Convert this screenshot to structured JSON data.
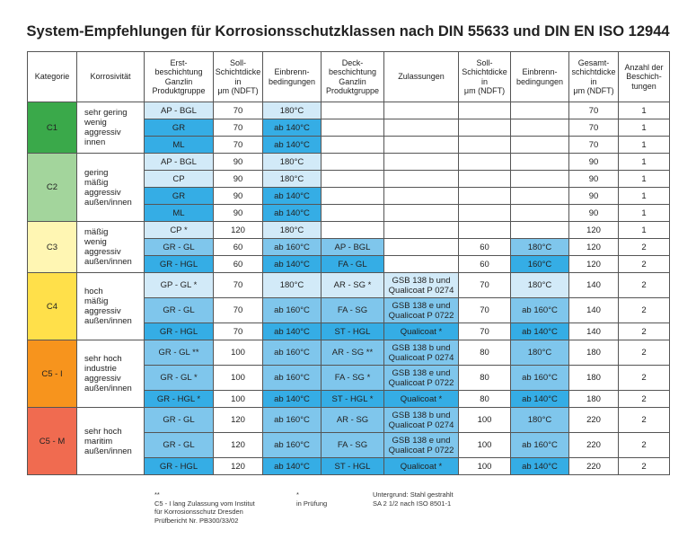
{
  "title": "System-Empfehlungen für Korrosionsschutzklassen nach DIN 55633 und DIN EN ISO 12944",
  "headers": [
    [
      "Kategorie"
    ],
    [
      "Korrosivität"
    ],
    [
      "Erst-",
      "beschichtung",
      "Ganzlin",
      "Produktgruppe"
    ],
    [
      "Soll-",
      "Schichtdicke",
      "in",
      "μm (NDFT)"
    ],
    [
      "Einbrenn-",
      "bedingungen"
    ],
    [
      "Deck-",
      "beschichtung",
      "Ganzlin",
      "Produktgruppe"
    ],
    [
      "Zulassungen"
    ],
    [
      "Soll-",
      "Schichtdicke",
      "in",
      "μm (NDFT)"
    ],
    [
      "Einbrenn-",
      "bedingungen"
    ],
    [
      "Gesamt-",
      "schichtdicke",
      "in",
      "μm (NDFT)"
    ],
    [
      "Anzahl der",
      "Beschich-",
      "tungen"
    ]
  ],
  "groups": [
    {
      "kategorie": "C1",
      "color": "#3aa94a",
      "korrosivitaet": [
        "sehr gering",
        "wenig aggressiv",
        "innen"
      ],
      "rows": [
        [
          "AP - BGL",
          70,
          "180°C",
          null,
          null,
          null,
          null,
          70,
          1
        ],
        [
          "GR",
          70,
          "ab 140°C",
          null,
          null,
          null,
          null,
          70,
          1
        ],
        [
          "ML",
          70,
          "ab 140°C",
          null,
          null,
          null,
          null,
          70,
          1
        ]
      ]
    },
    {
      "kategorie": "C2",
      "color": "#a3d59c",
      "korrosivitaet": [
        "gering",
        "mäßig aggressiv",
        "außen/innen"
      ],
      "rows": [
        [
          "AP - BGL",
          90,
          "180°C",
          null,
          null,
          null,
          null,
          90,
          1
        ],
        [
          "CP",
          90,
          "180°C",
          null,
          null,
          null,
          null,
          90,
          1
        ],
        [
          "GR",
          90,
          "ab 140°C",
          null,
          null,
          null,
          null,
          90,
          1
        ],
        [
          "ML",
          90,
          "ab 140°C",
          null,
          null,
          null,
          null,
          90,
          1
        ]
      ]
    },
    {
      "kategorie": "C3",
      "color": "#fff6b3",
      "korrosivitaet": [
        "mäßig",
        "wenig aggressiv",
        "außen/innen"
      ],
      "rows": [
        [
          "CP *",
          120,
          "180°C",
          null,
          null,
          null,
          null,
          120,
          1
        ],
        [
          "GR - GL",
          60,
          "ab 160°C",
          "AP - BGL",
          null,
          60,
          "180°C",
          120,
          2
        ],
        [
          "GR - HGL",
          60,
          "ab 140°C",
          "FA - GL",
          null,
          60,
          "160°C",
          120,
          2
        ]
      ]
    },
    {
      "kategorie": "C4",
      "color": "#ffe04a",
      "korrosivitaet": [
        "hoch",
        "mäßig aggressiv",
        "außen/innen"
      ],
      "rows": [
        [
          "GP - GL *",
          70,
          "180°C",
          "AR - SG *",
          [
            "GSB 138 b und",
            "Qualicoat P 0274"
          ],
          70,
          "180°C",
          140,
          2
        ],
        [
          "GR - GL",
          70,
          "ab 160°C",
          "FA - SG",
          [
            "GSB 138 e und",
            "Qualicoat P 0722"
          ],
          70,
          "ab 160°C",
          140,
          2
        ],
        [
          "GR - HGL",
          70,
          "ab 140°C",
          "ST - HGL",
          "Qualicoat *",
          70,
          "ab 140°C",
          140,
          2
        ]
      ]
    },
    {
      "kategorie": "C5 - I",
      "color": "#f7941d",
      "korrosivitaet": [
        "sehr hoch",
        "industrie",
        "aggressiv",
        "außen/innen"
      ],
      "rows": [
        [
          "GR - GL **",
          100,
          "ab 160°C",
          "AR - SG **",
          [
            "GSB 138 b und",
            "Qualicoat P 0274"
          ],
          80,
          "180°C",
          180,
          2
        ],
        [
          "GR - GL *",
          100,
          "ab 160°C",
          "FA - SG *",
          [
            "GSB 138 e und",
            "Qualicoat P 0722"
          ],
          80,
          "ab 160°C",
          180,
          2
        ],
        [
          "GR - HGL *",
          100,
          "ab 140°C",
          "ST - HGL *",
          "Qualicoat *",
          80,
          "ab 140°C",
          180,
          2
        ]
      ]
    },
    {
      "kategorie": "C5 - M",
      "color": "#f06b50",
      "korrosivitaet": [
        "sehr hoch",
        "maritim",
        "außen/innen"
      ],
      "rows": [
        [
          "GR - GL",
          120,
          "ab 160°C",
          "AR - SG",
          [
            "GSB 138 b und",
            "Qualicoat P 0274"
          ],
          100,
          "180°C",
          220,
          2
        ],
        [
          "GR - GL",
          120,
          "ab 160°C",
          "FA - SG",
          [
            "GSB 138 e und",
            "Qualicoat P 0722"
          ],
          100,
          "ab 160°C",
          220,
          2
        ],
        [
          "GR - HGL",
          120,
          "ab 140°C",
          "ST - HGL",
          "Qualicoat *",
          100,
          "ab 140°C",
          220,
          2
        ]
      ]
    }
  ],
  "footnotes": [
    [
      "**",
      "C5 - I lang Zulassung vom Institut",
      "für Korrosionsschutz Dresden",
      "Prüfbericht Nr. PB300/33/02"
    ],
    [
      "*",
      "in Prüfung"
    ],
    [
      "Untergrund: Stahl gestrahlt",
      "SA 2 1/2 nach ISO 8501-1"
    ]
  ]
}
